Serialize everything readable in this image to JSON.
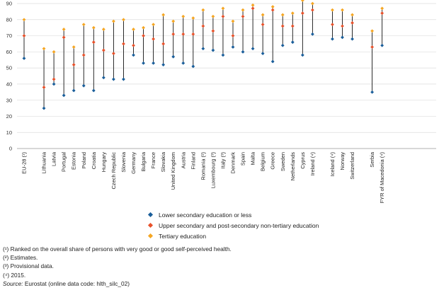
{
  "chart_data": {
    "type": "dot_range",
    "title": "",
    "xlabel": "",
    "ylabel": "",
    "ylim": [
      0,
      90
    ],
    "yticks": [
      0,
      10,
      20,
      30,
      40,
      50,
      60,
      70,
      80,
      90
    ],
    "grid": true,
    "groups": [
      [
        "EU-28 (¹)"
      ],
      [
        "Lithuania",
        "Latvia",
        "Portugal",
        "Estonia",
        "Poland",
        "Croatia",
        "Hungary",
        "Czech Republic",
        "Slovenia",
        "Germany",
        "Bulgaria",
        "France",
        "Slovakia",
        "United Kingdom",
        "Austria",
        "Finland",
        "Romania (²)",
        "Luxembourg (³)",
        "Italy (³)",
        "Denmark",
        "Spain",
        "Malta",
        "Belgium",
        "Greece",
        "Sweden",
        "Netherlands",
        "Cyprus",
        "Ireland (⁴)"
      ],
      [
        "Iceland (⁴)",
        "Norway",
        "Switzerland"
      ],
      [
        "Serbia",
        "FYR of Macedonia (⁴)"
      ]
    ],
    "categories": [
      "EU-28 (¹)",
      "Lithuania",
      "Latvia",
      "Portugal",
      "Estonia",
      "Poland",
      "Croatia",
      "Hungary",
      "Czech Republic",
      "Slovenia",
      "Germany",
      "Bulgaria",
      "France",
      "Slovakia",
      "United Kingdom",
      "Austria",
      "Finland",
      "Romania (²)",
      "Luxembourg (³)",
      "Italy (³)",
      "Denmark",
      "Spain",
      "Malta",
      "Belgium",
      "Greece",
      "Sweden",
      "Netherlands",
      "Cyprus",
      "Ireland (⁴)",
      "Iceland (⁴)",
      "Norway",
      "Switzerland",
      "Serbia",
      "FYR of Macedonia (⁴)"
    ],
    "series": [
      {
        "name": "Lower secondary education or less",
        "color": "#1a5e9a",
        "values": [
          56,
          25,
          40,
          33,
          36,
          39,
          36,
          44,
          43,
          43,
          58,
          53,
          53,
          52,
          57,
          53,
          51,
          62,
          61,
          58,
          63,
          60,
          62,
          59,
          54,
          64,
          66,
          58,
          71,
          68,
          69,
          68,
          35,
          64
        ]
      },
      {
        "name": "Upper secondary and post-secondary non-tertiary education",
        "color": "#e8512a",
        "values": [
          70,
          38,
          43,
          69,
          52,
          58,
          66,
          61,
          59,
          65,
          64,
          70,
          68,
          65,
          71,
          71,
          71,
          76,
          73,
          82,
          70,
          82,
          87,
          77,
          86,
          76,
          76,
          84,
          86,
          77,
          76,
          78,
          63,
          84
        ]
      },
      {
        "name": "Tertiary education",
        "color": "#f5a623",
        "values": [
          80,
          62,
          60,
          74,
          63,
          77,
          75,
          74,
          79,
          80,
          74,
          75,
          77,
          83,
          79,
          82,
          81,
          86,
          82,
          87,
          79,
          86,
          89,
          83,
          88,
          83,
          84,
          92,
          90,
          86,
          86,
          83,
          73,
          87
        ]
      }
    ]
  },
  "legend": {
    "lower": "Lower secondary education or less",
    "upper": "Upper secondary and post-secondary non-tertiary education",
    "tertiary": "Tertiary education",
    "colors": {
      "lower": "#1a5e9a",
      "upper": "#e8512a",
      "tertiary": "#f5a623"
    }
  },
  "notes": {
    "n1": "(¹) Ranked on the overall share of persons with very good or good self-perceived health.",
    "n2": "(²) Estimates.",
    "n3": "(³) Provisional data.",
    "n4": "(⁴) 2015.",
    "source_label": "Source:",
    "source_text": " Eurostat (online data code: hlth_silc_02)"
  }
}
